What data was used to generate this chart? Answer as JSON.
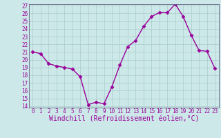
{
  "x": [
    0,
    1,
    2,
    3,
    4,
    5,
    6,
    7,
    8,
    9,
    10,
    11,
    12,
    13,
    14,
    15,
    16,
    17,
    18,
    19,
    20,
    21,
    22,
    23
  ],
  "y": [
    21.0,
    20.8,
    19.5,
    19.2,
    19.0,
    18.8,
    17.8,
    14.2,
    14.5,
    14.3,
    16.5,
    19.3,
    21.7,
    22.5,
    24.3,
    25.6,
    26.1,
    26.1,
    27.2,
    25.6,
    23.2,
    21.2,
    21.1,
    18.9
  ],
  "line_color": "#990099",
  "marker": "D",
  "marker_size": 2.5,
  "bg_color": "#cce8e8",
  "grid_color": "#aacccc",
  "xlabel": "Windchill (Refroidissement éolien,°C)",
  "ylim": [
    14,
    27
  ],
  "xlim": [
    -0.5,
    23.5
  ],
  "yticks": [
    14,
    15,
    16,
    17,
    18,
    19,
    20,
    21,
    22,
    23,
    24,
    25,
    26,
    27
  ],
  "xticks": [
    0,
    1,
    2,
    3,
    4,
    5,
    6,
    7,
    8,
    9,
    10,
    11,
    12,
    13,
    14,
    15,
    16,
    17,
    18,
    19,
    20,
    21,
    22,
    23
  ],
  "tick_label_size": 5.5,
  "xlabel_size": 7.0,
  "spine_color": "#666688",
  "line_width": 1.0
}
